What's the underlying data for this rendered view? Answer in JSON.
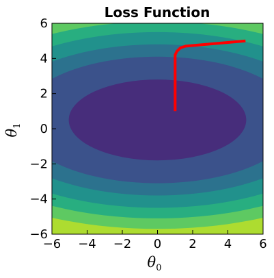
{
  "chart_data": {
    "type": "contour",
    "title": "Loss Function",
    "xlabel": "θ",
    "xlabel_sub": "0",
    "ylabel": "θ",
    "ylabel_sub": "1",
    "xlim": [
      -6,
      6
    ],
    "ylim": [
      -6,
      6
    ],
    "xticks": [
      -6,
      -4,
      -2,
      0,
      2,
      4,
      6
    ],
    "yticks": [
      -6,
      -4,
      -2,
      0,
      2,
      4,
      6
    ],
    "xtick_labels": [
      "−6",
      "−4",
      "−2",
      "0",
      "2",
      "4",
      "6"
    ],
    "ytick_labels": [
      "−6",
      "−4",
      "−2",
      "0",
      "2",
      "4",
      "6"
    ],
    "grid": false,
    "contour_levels": {
      "center": [
        0,
        0.5
      ],
      "x_scale": 2.2,
      "colors": [
        "#472d7b",
        "#3b528b",
        "#2c728e",
        "#21918c",
        "#28ae80",
        "#5ec962",
        "#addc30"
      ],
      "y_half_widths_at_center": [
        2.3,
        3.6,
        4.3,
        5.0,
        5.6,
        6.2
      ]
    },
    "path": {
      "name": "gradient descent path",
      "color": "#ff0000",
      "x": [
        5.0,
        1.6,
        1.3,
        1.1,
        1.0,
        1.0,
        1.0
      ],
      "y": [
        5.0,
        4.7,
        4.6,
        4.4,
        4.2,
        2.5,
        1.0
      ]
    }
  }
}
